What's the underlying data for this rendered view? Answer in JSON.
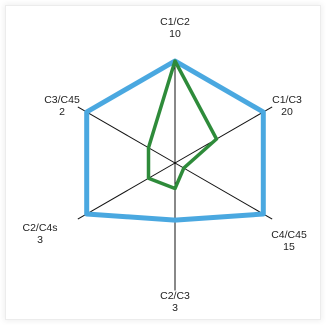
{
  "chart_data": {
    "type": "radar",
    "title": "",
    "axes": [
      {
        "name": "C1/C2",
        "value_label": "10"
      },
      {
        "name": "C1/C3",
        "value_label": "20"
      },
      {
        "name": "C4/C45",
        "value_label": "15"
      },
      {
        "name": "C2/C3",
        "value_label": "3"
      },
      {
        "name": "C2/C4s",
        "value_label": "3"
      },
      {
        "name": "C3/C45",
        "value_label": "2"
      }
    ],
    "rmax": 1,
    "series": [
      {
        "color": "#4aa8e0",
        "values": [
          1.0,
          1.0,
          1.0,
          0.56,
          1.0,
          1.0
        ]
      },
      {
        "color": "#2e8b3a",
        "values": [
          1.0,
          0.47,
          0.1,
          0.25,
          0.3,
          0.3
        ]
      }
    ],
    "grid": false,
    "legend": "none"
  }
}
